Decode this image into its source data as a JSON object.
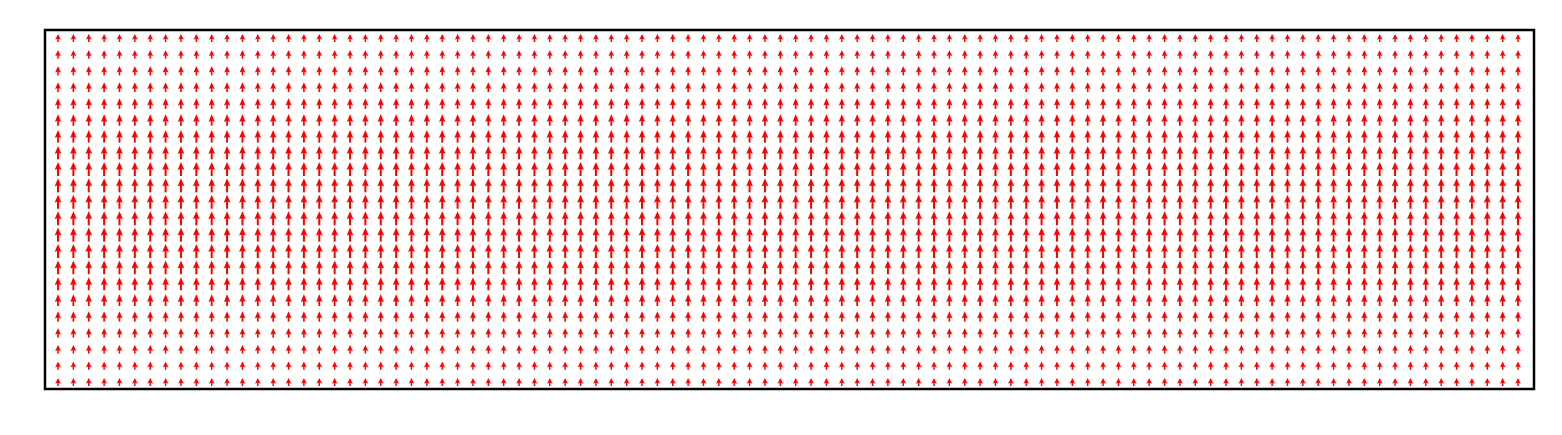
{
  "chart_data": {
    "type": "quiver",
    "title": "",
    "xlabel": "",
    "ylabel": "",
    "ticks_visible": false,
    "grid": false,
    "legend": "none",
    "arrow_color": "#ff0000",
    "background_color": "#ffffff",
    "frame_color": "#000000",
    "columns": 96,
    "rows": 22,
    "xlim": [
      0,
      96
    ],
    "ylim": [
      0,
      22
    ],
    "direction": "up",
    "u": 0,
    "v_profile": [
      0.5,
      0.55,
      0.6,
      0.65,
      0.72,
      0.8,
      0.88,
      0.95,
      1.0,
      1.0,
      1.0,
      1.0,
      1.0,
      1.0,
      0.98,
      0.92,
      0.82,
      0.7,
      0.62,
      0.56,
      0.52,
      0.5
    ]
  }
}
